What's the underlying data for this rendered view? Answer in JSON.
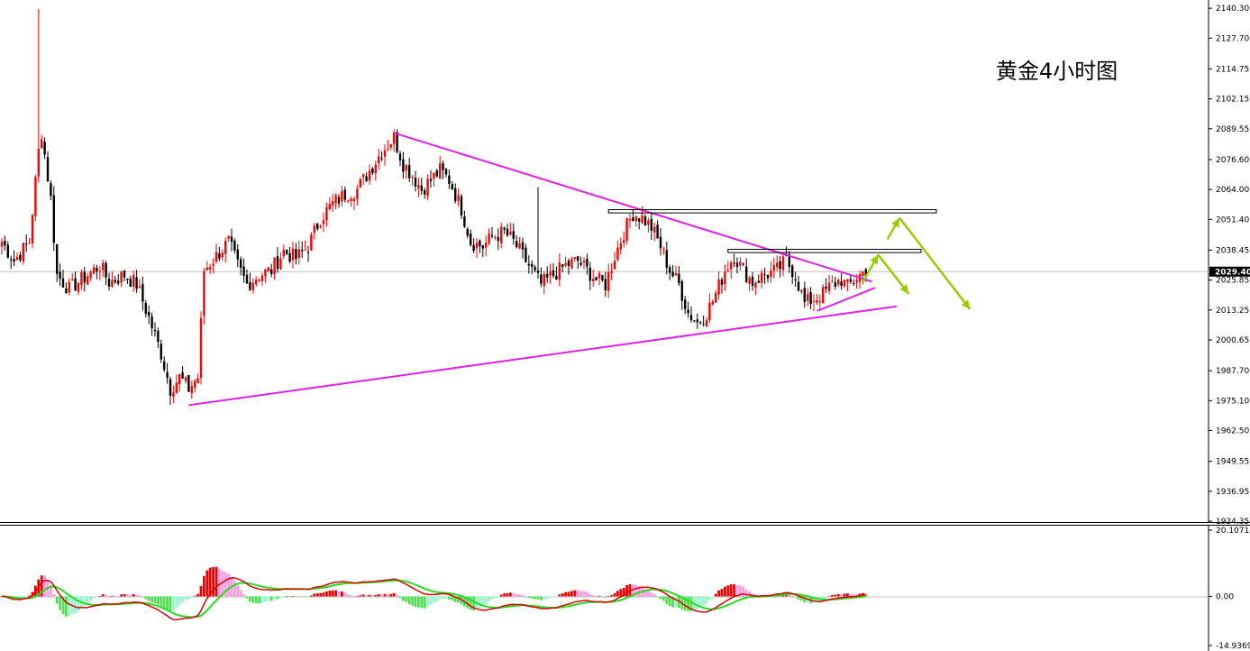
{
  "chart_data": [
    {
      "type": "candlestick",
      "title": "黄金4小时图",
      "y_ticks": [
        "2140.30",
        "2127.70",
        "2114.75",
        "2102.15",
        "2089.55",
        "2076.60",
        "2064.00",
        "2051.40",
        "2038.45",
        "2025.85",
        "2013.25",
        "2000.65",
        "1987.70",
        "1975.10",
        "1962.50",
        "1949.55",
        "1936.95",
        "1924.35"
      ],
      "ylim": [
        1924.35,
        2143.0
      ],
      "current_price": "2029.40",
      "colors": {
        "bull": "#ff0000",
        "bear": "#000000",
        "trendline": "#e020e0",
        "arrow": "#99cc00",
        "levels": "#000000"
      },
      "waypoints": [
        [
          0,
          2042
        ],
        [
          4,
          2034
        ],
        [
          9,
          2042
        ],
        [
          12,
          2080
        ],
        [
          13,
          2088
        ],
        [
          16,
          2060
        ],
        [
          18,
          2028
        ],
        [
          22,
          2022
        ],
        [
          28,
          2028
        ],
        [
          32,
          2032
        ],
        [
          35,
          2025
        ],
        [
          40,
          2028
        ],
        [
          44,
          2024
        ],
        [
          48,
          2010
        ],
        [
          52,
          1995
        ],
        [
          55,
          1980
        ],
        [
          58,
          1985
        ],
        [
          61,
          1980
        ],
        [
          64,
          1985
        ],
        [
          66,
          2030
        ],
        [
          70,
          2036
        ],
        [
          74,
          2042
        ],
        [
          77,
          2032
        ],
        [
          80,
          2024
        ],
        [
          84,
          2028
        ],
        [
          88,
          2030
        ],
        [
          92,
          2038
        ],
        [
          96,
          2035
        ],
        [
          100,
          2040
        ],
        [
          104,
          2052
        ],
        [
          108,
          2058
        ],
        [
          112,
          2062
        ],
        [
          116,
          2064
        ],
        [
          120,
          2072
        ],
        [
          124,
          2080
        ],
        [
          128,
          2086
        ],
        [
          131,
          2075
        ],
        [
          134,
          2070
        ],
        [
          137,
          2064
        ],
        [
          140,
          2068
        ],
        [
          143,
          2072
        ],
        [
          146,
          2068
        ],
        [
          150,
          2056
        ],
        [
          153,
          2042
        ],
        [
          157,
          2040
        ],
        [
          160,
          2044
        ],
        [
          164,
          2046
        ],
        [
          167,
          2042
        ],
        [
          170,
          2036
        ],
        [
          173,
          2030
        ],
        [
          176,
          2024
        ],
        [
          180,
          2028
        ],
        [
          184,
          2032
        ],
        [
          188,
          2034
        ],
        [
          191,
          2030
        ],
        [
          194,
          2026
        ],
        [
          197,
          2024
        ],
        [
          200,
          2036
        ],
        [
          203,
          2046
        ],
        [
          206,
          2054
        ],
        [
          209,
          2052
        ],
        [
          212,
          2048
        ],
        [
          215,
          2040
        ],
        [
          218,
          2030
        ],
        [
          221,
          2024
        ],
        [
          224,
          2012
        ],
        [
          227,
          2008
        ],
        [
          230,
          2012
        ],
        [
          233,
          2020
        ],
        [
          236,
          2030
        ],
        [
          239,
          2036
        ],
        [
          242,
          2030
        ],
        [
          245,
          2025
        ],
        [
          249,
          2028
        ],
        [
          253,
          2030
        ],
        [
          256,
          2034
        ],
        [
          259,
          2028
        ],
        [
          262,
          2016
        ],
        [
          265,
          2018
        ],
        [
          268,
          2020
        ],
        [
          271,
          2024
        ],
        [
          274,
          2026
        ],
        [
          276,
          2023
        ],
        [
          279,
          2027
        ],
        [
          282,
          2030
        ]
      ],
      "annotations": {
        "upper_trendline": [
          [
            128,
            2087.8
          ],
          [
            284,
            2025.2
          ]
        ],
        "lower_trendline": [
          [
            61,
            1973.2
          ],
          [
            292,
            2014.8
          ]
        ],
        "small_trendline": [
          [
            266,
            2012.8
          ],
          [
            285,
            2022.6
          ]
        ],
        "resistance_level_1": [
          [
            198,
            2055.5
          ],
          [
            305,
            2054.5
          ]
        ],
        "resistance_level_2": [
          [
            237,
            2038.8
          ],
          [
            300,
            2037.8
          ]
        ],
        "arrow_path_1": [
          [
            281,
            2025
          ],
          [
            286,
            2036.5
          ],
          [
            296,
            2020
          ]
        ],
        "arrow_path_2": [
          [
            289,
            2043
          ],
          [
            293,
            2052
          ],
          [
            316,
            2013.5
          ]
        ]
      }
    },
    {
      "type": "macd",
      "y_ticks": [
        "20.1071",
        "0.00",
        "-14.9369"
      ],
      "ylim": [
        -14.9369,
        20.1071
      ],
      "colors": {
        "hist_pos_strong": "#ee0000",
        "hist_pos_weak": "#ff99dd",
        "hist_neg_strong": "#55dd55",
        "hist_neg_weak": "#99f5cc",
        "signal": "#22dd22",
        "macd": "#dd0000"
      }
    }
  ]
}
